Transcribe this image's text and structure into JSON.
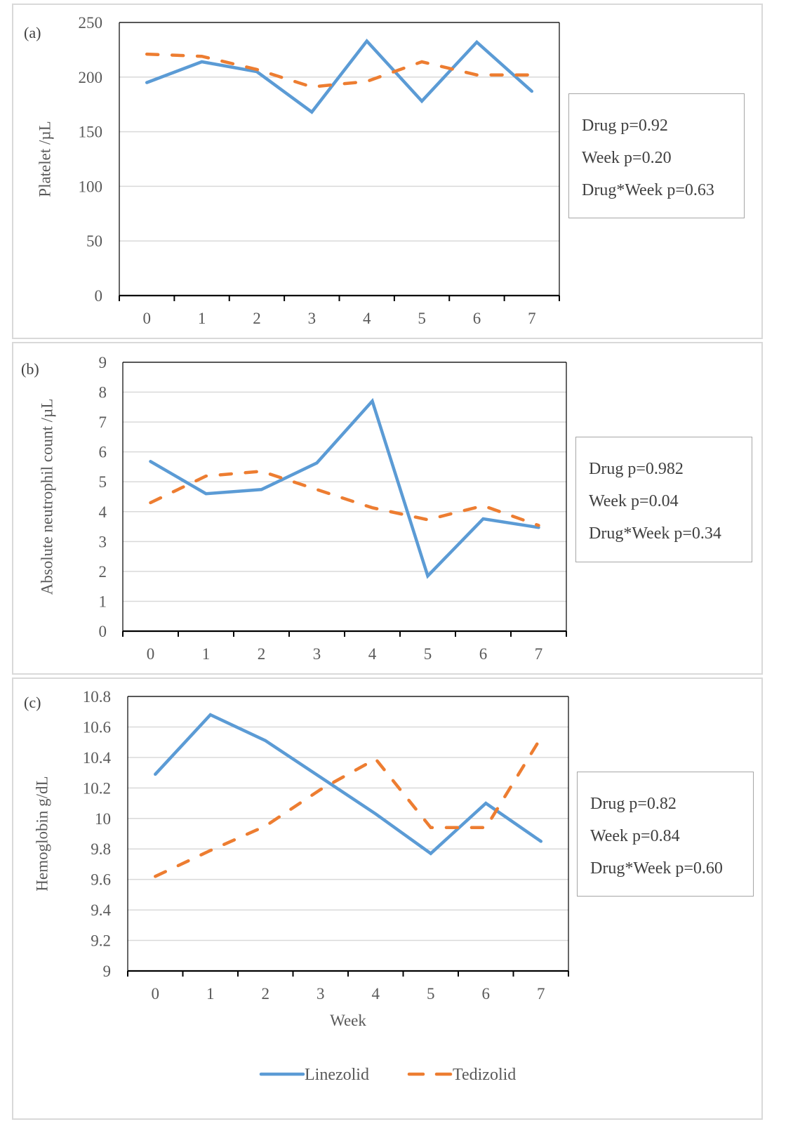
{
  "chart_data": [
    {
      "type": "line",
      "panel_label": "(a)",
      "title": "",
      "xlabel": "",
      "ylabel": "Platelet /µL",
      "categories": [
        "0",
        "1",
        "2",
        "3",
        "4",
        "5",
        "6",
        "7"
      ],
      "yticks": [
        "0",
        "50",
        "100",
        "150",
        "200",
        "250"
      ],
      "ylim": [
        0,
        250
      ],
      "grid": true,
      "series": [
        {
          "name": "Linezolid",
          "values": [
            195,
            214,
            205,
            168,
            233,
            178,
            232,
            187
          ]
        },
        {
          "name": "Tedizolid",
          "values": [
            221,
            219,
            207,
            191,
            196,
            214,
            202,
            202
          ]
        }
      ],
      "annotations": [
        "Drug p=0.92",
        "Week p=0.20",
        "Drug*Week p=0.63"
      ]
    },
    {
      "type": "line",
      "panel_label": "(b)",
      "title": "",
      "xlabel": "",
      "ylabel": "Absolute neutrophil count /µL",
      "categories": [
        "0",
        "1",
        "2",
        "3",
        "4",
        "5",
        "6",
        "7"
      ],
      "yticks": [
        "0",
        "1",
        "2",
        "3",
        "4",
        "5",
        "6",
        "7",
        "8",
        "9"
      ],
      "ylim": [
        0,
        9
      ],
      "grid": true,
      "series": [
        {
          "name": "Linezolid",
          "values": [
            5.68,
            4.6,
            4.74,
            5.63,
            7.7,
            1.85,
            3.76,
            3.47
          ]
        },
        {
          "name": "Tedizolid",
          "values": [
            4.3,
            5.19,
            5.35,
            4.74,
            4.13,
            3.73,
            4.2,
            3.54
          ]
        }
      ],
      "annotations": [
        "Drug p=0.982",
        "Week p=0.04",
        "Drug*Week p=0.34"
      ]
    },
    {
      "type": "line",
      "panel_label": "(c)",
      "title": "",
      "xlabel": "Week",
      "ylabel": "Hemoglobin g/dL",
      "categories": [
        "0",
        "1",
        "2",
        "3",
        "4",
        "5",
        "6",
        "7"
      ],
      "yticks": [
        "9",
        "9.2",
        "9.4",
        "9.6",
        "9.8",
        "10",
        "10.2",
        "10.4",
        "10.6",
        "10.8"
      ],
      "ylim": [
        9,
        10.8
      ],
      "grid": true,
      "series": [
        {
          "name": "Linezolid",
          "values": [
            10.29,
            10.68,
            10.51,
            10.27,
            10.03,
            9.77,
            10.1,
            9.85
          ]
        },
        {
          "name": "Tedizolid",
          "values": [
            9.62,
            9.79,
            9.95,
            10.19,
            10.39,
            9.94,
            9.94,
            10.53
          ]
        }
      ],
      "annotations": [
        "Drug p=0.82",
        "Week p=0.84",
        "Drug*Week p=0.60"
      ]
    }
  ],
  "legend": {
    "position": "bottom",
    "items": [
      {
        "name": "Linezolid",
        "style": "solid",
        "color": "#5b9bd5"
      },
      {
        "name": "Tedizolid",
        "style": "dashed",
        "color": "#ed7d31"
      }
    ]
  },
  "colors": {
    "linezolid": "#5b9bd5",
    "tedizolid": "#ed7d31",
    "grid": "#d9d9d9",
    "axis": "#000000",
    "text": "#595959"
  }
}
